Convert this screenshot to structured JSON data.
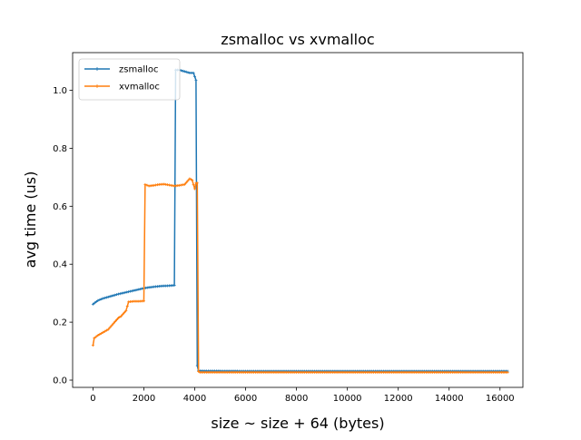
{
  "chart_data": {
    "type": "line",
    "title": "zsmalloc vs xvmalloc",
    "xlabel": "size ~ size + 64 (bytes)",
    "ylabel": "avg time (us)",
    "xlim": [
      -800,
      16900
    ],
    "ylim": [
      -0.025,
      1.13
    ],
    "xticks": [
      0,
      2000,
      4000,
      6000,
      8000,
      10000,
      12000,
      14000,
      16000
    ],
    "yticks": [
      0.0,
      0.2,
      0.4,
      0.6,
      0.8,
      1.0
    ],
    "grid": false,
    "legend_position": "top-left",
    "series": [
      {
        "name": "zsmalloc",
        "color": "#1f77b4",
        "marker": "plus",
        "points": [
          [
            0,
            0.262
          ],
          [
            200,
            0.275
          ],
          [
            400,
            0.282
          ],
          [
            600,
            0.287
          ],
          [
            800,
            0.292
          ],
          [
            1000,
            0.297
          ],
          [
            1200,
            0.301
          ],
          [
            1400,
            0.305
          ],
          [
            1600,
            0.309
          ],
          [
            1800,
            0.313
          ],
          [
            2000,
            0.317
          ],
          [
            2200,
            0.32
          ],
          [
            2400,
            0.322
          ],
          [
            2600,
            0.324
          ],
          [
            2800,
            0.325
          ],
          [
            3000,
            0.326
          ],
          [
            3200,
            0.327
          ],
          [
            3250,
            1.07
          ],
          [
            3400,
            1.07
          ],
          [
            3600,
            1.065
          ],
          [
            3800,
            1.06
          ],
          [
            3950,
            1.06
          ],
          [
            4050,
            1.035
          ],
          [
            4100,
            0.05
          ],
          [
            4150,
            0.032
          ],
          [
            6000,
            0.031
          ],
          [
            8000,
            0.031
          ],
          [
            10000,
            0.031
          ],
          [
            12000,
            0.031
          ],
          [
            14000,
            0.031
          ],
          [
            16000,
            0.031
          ],
          [
            16300,
            0.031
          ]
        ]
      },
      {
        "name": "xvmalloc",
        "color": "#ff7f0e",
        "marker": "plus",
        "points": [
          [
            0,
            0.12
          ],
          [
            50,
            0.145
          ],
          [
            200,
            0.155
          ],
          [
            400,
            0.165
          ],
          [
            600,
            0.175
          ],
          [
            800,
            0.195
          ],
          [
            1000,
            0.215
          ],
          [
            1100,
            0.22
          ],
          [
            1300,
            0.24
          ],
          [
            1400,
            0.27
          ],
          [
            1600,
            0.272
          ],
          [
            1800,
            0.272
          ],
          [
            2000,
            0.273
          ],
          [
            2050,
            0.675
          ],
          [
            2200,
            0.67
          ],
          [
            2400,
            0.672
          ],
          [
            2600,
            0.675
          ],
          [
            2800,
            0.676
          ],
          [
            3000,
            0.673
          ],
          [
            3200,
            0.67
          ],
          [
            3400,
            0.672
          ],
          [
            3600,
            0.675
          ],
          [
            3800,
            0.695
          ],
          [
            3900,
            0.69
          ],
          [
            4000,
            0.66
          ],
          [
            4050,
            0.68
          ],
          [
            4100,
            0.68
          ],
          [
            4150,
            0.03
          ],
          [
            4200,
            0.027
          ],
          [
            6000,
            0.027
          ],
          [
            8000,
            0.027
          ],
          [
            10000,
            0.027
          ],
          [
            12000,
            0.027
          ],
          [
            14000,
            0.027
          ],
          [
            16000,
            0.027
          ],
          [
            16300,
            0.027
          ]
        ]
      }
    ]
  }
}
